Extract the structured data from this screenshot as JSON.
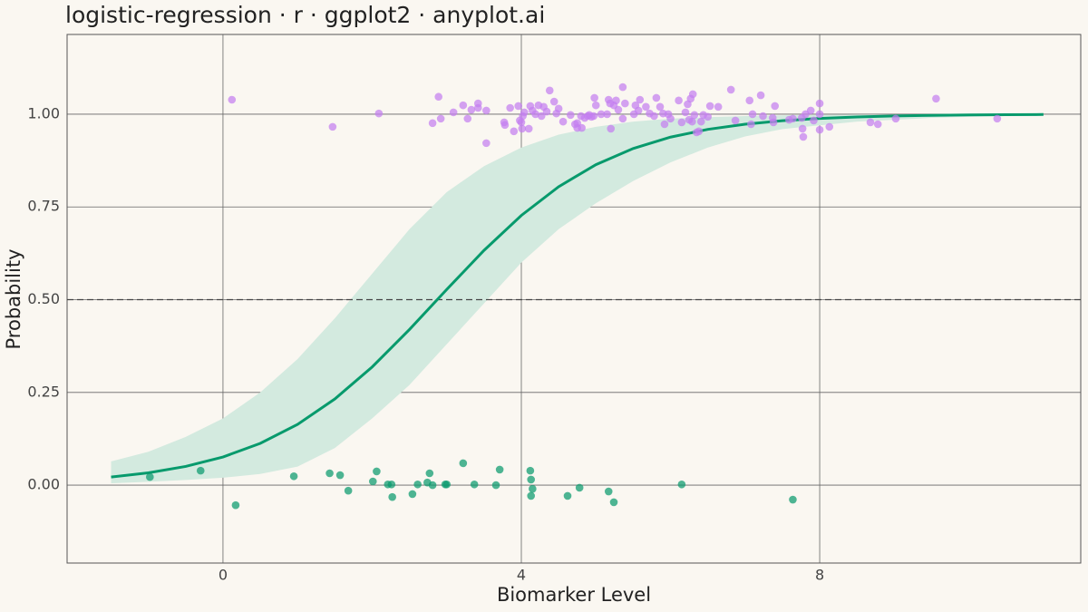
{
  "chart_data": {
    "type": "scatter",
    "title": "logistic-regression · r · ggplot2 · anyplot.ai",
    "x_label": "Biomarker Level",
    "y_label": "Probability",
    "xlim": [
      -2.09,
      11.5
    ],
    "ylim": [
      -0.21,
      1.215
    ],
    "xticks": [
      0,
      4,
      8
    ],
    "yticks": [
      {
        "value": 0,
        "label": "0.00"
      },
      {
        "value": 0.25,
        "label": "0.25"
      },
      {
        "value": 0.5,
        "label": "0.50"
      },
      {
        "value": 0.75,
        "label": "0.75"
      },
      {
        "value": 1,
        "label": "1.00"
      }
    ],
    "grid": true,
    "hline": 0.5,
    "series": [
      {
        "color": "#0a9a6e",
        "x": [
          -0.98,
          -0.3,
          0.17,
          0.95,
          1.43,
          1.57,
          1.68,
          2.01,
          2.06,
          2.21,
          2.26,
          2.27,
          2.54,
          2.61,
          2.74,
          2.77,
          2.81,
          2.98,
          3.0,
          3.22,
          3.37,
          3.66,
          3.71,
          4.12,
          4.13,
          4.15,
          4.13,
          4.62,
          4.78,
          5.17,
          5.24,
          6.15,
          7.64
        ],
        "values": [
          0.022,
          0.039,
          -0.054,
          0.024,
          0.032,
          0.027,
          -0.015,
          0.01,
          0.037,
          0.002,
          0.002,
          -0.032,
          -0.024,
          0.002,
          0.007,
          0.032,
          0,
          0.002,
          0.002,
          0.059,
          0.002,
          0,
          0.042,
          0.039,
          0.015,
          -0.01,
          -0.029,
          -0.029,
          -0.007,
          -0.017,
          -0.046,
          0.002,
          -0.039
        ]
      },
      {
        "color": "#c47ef0",
        "x": [
          0.12,
          1.47,
          2.09,
          2.81,
          2.89,
          2.92,
          3.09,
          3.22,
          3.28,
          3.33,
          3.42,
          3.42,
          3.53,
          3.53,
          3.77,
          3.78,
          3.85,
          3.9,
          3.96,
          3.98,
          4.0,
          4.01,
          4.02,
          4.04,
          4.1,
          4.12,
          4.15,
          4.19,
          4.23,
          4.27,
          4.3,
          4.34,
          4.38,
          4.44,
          4.47,
          4.5,
          4.56,
          4.66,
          4.72,
          4.75,
          4.75,
          4.8,
          4.81,
          4.85,
          4.89,
          4.91,
          4.94,
          4.97,
          4.98,
          5.0,
          5.07,
          5.15,
          5.17,
          5.19,
          5.2,
          5.24,
          5.27,
          5.3,
          5.36,
          5.36,
          5.39,
          5.51,
          5.53,
          5.57,
          5.59,
          5.67,
          5.72,
          5.78,
          5.81,
          5.86,
          5.9,
          5.92,
          5.97,
          6.0,
          6.11,
          6.15,
          6.2,
          6.23,
          6.25,
          6.27,
          6.29,
          6.3,
          6.32,
          6.35,
          6.38,
          6.41,
          6.44,
          6.5,
          6.53,
          6.64,
          6.81,
          6.87,
          7.06,
          7.08,
          7.1,
          7.21,
          7.24,
          7.4,
          7.37,
          7.38,
          7.59,
          7.64,
          7.76,
          7.77,
          7.78,
          7.81,
          7.88,
          7.92,
          8.0,
          8.0,
          8.0,
          8.13,
          8.68,
          8.78,
          9.02,
          9.56,
          10.38
        ],
        "values": [
          1.039,
          0.966,
          1.002,
          0.976,
          1.047,
          0.988,
          1.005,
          1.024,
          0.988,
          1.012,
          1.029,
          1.017,
          1.01,
          0.922,
          0.978,
          0.971,
          1.017,
          0.954,
          1.022,
          0.983,
          0.978,
          0.961,
          0.995,
          1.005,
          0.961,
          1.022,
          1.01,
          1.0,
          1.024,
          0.995,
          1.02,
          1.007,
          1.064,
          1.034,
          1.002,
          1.015,
          0.98,
          0.998,
          0.973,
          0.976,
          0.963,
          0.995,
          0.963,
          0.99,
          0.995,
          0.998,
          0.993,
          0.995,
          1.044,
          1.024,
          1.0,
          1.0,
          1.039,
          1.029,
          0.961,
          1.024,
          1.037,
          1.012,
          1.073,
          0.988,
          1.029,
          1.0,
          1.024,
          1.01,
          1.039,
          1.02,
          1.002,
          0.995,
          1.044,
          1.02,
          1.002,
          0.973,
          1.0,
          0.988,
          1.037,
          0.978,
          1.005,
          1.027,
          0.985,
          1.042,
          0.98,
          1.054,
          0.998,
          0.951,
          0.954,
          0.98,
          0.998,
          0.993,
          1.022,
          1.02,
          1.066,
          0.983,
          1.037,
          0.973,
          1.0,
          1.051,
          0.995,
          1.022,
          0.99,
          0.978,
          0.985,
          0.988,
          0.99,
          0.961,
          0.939,
          1.0,
          1.01,
          0.983,
          0.958,
          1.0,
          1.029,
          0.966,
          0.978,
          0.973,
          0.988,
          1.042,
          0.988
        ]
      }
    ],
    "fit": {
      "color": "#079a6c",
      "band_color": "#d3eadf",
      "x": [
        -1.5,
        -1,
        -0.5,
        0,
        0.5,
        1,
        1.5,
        2,
        2.5,
        3,
        3.5,
        4,
        4.5,
        5,
        5.5,
        6,
        6.5,
        7,
        7.5,
        8,
        8.5,
        9,
        9.5,
        10,
        10.5,
        11
      ],
      "values": [
        0.0218,
        0.0332,
        0.0505,
        0.0759,
        0.1126,
        0.1638,
        0.2324,
        0.3186,
        0.4195,
        0.5275,
        0.633,
        0.7271,
        0.8045,
        0.8641,
        0.9076,
        0.9382,
        0.9591,
        0.9731,
        0.9824,
        0.9886,
        0.9926,
        0.9952,
        0.9969,
        0.998,
        0.9987,
        0.9992
      ],
      "lower": [
        0.005,
        0.009,
        0.014,
        0.02,
        0.03,
        0.05,
        0.1,
        0.18,
        0.27,
        0.38,
        0.49,
        0.6,
        0.69,
        0.76,
        0.82,
        0.87,
        0.91,
        0.94,
        0.96,
        0.97,
        0.98,
        0.985,
        0.99,
        0.993,
        0.995,
        0.997
      ],
      "upper": [
        0.064,
        0.09,
        0.13,
        0.18,
        0.25,
        0.34,
        0.45,
        0.57,
        0.69,
        0.79,
        0.86,
        0.91,
        0.945,
        0.966,
        0.98,
        0.988,
        0.992,
        0.995,
        0.997,
        0.998,
        0.999,
        0.999,
        0.999,
        1,
        1,
        1
      ]
    }
  }
}
